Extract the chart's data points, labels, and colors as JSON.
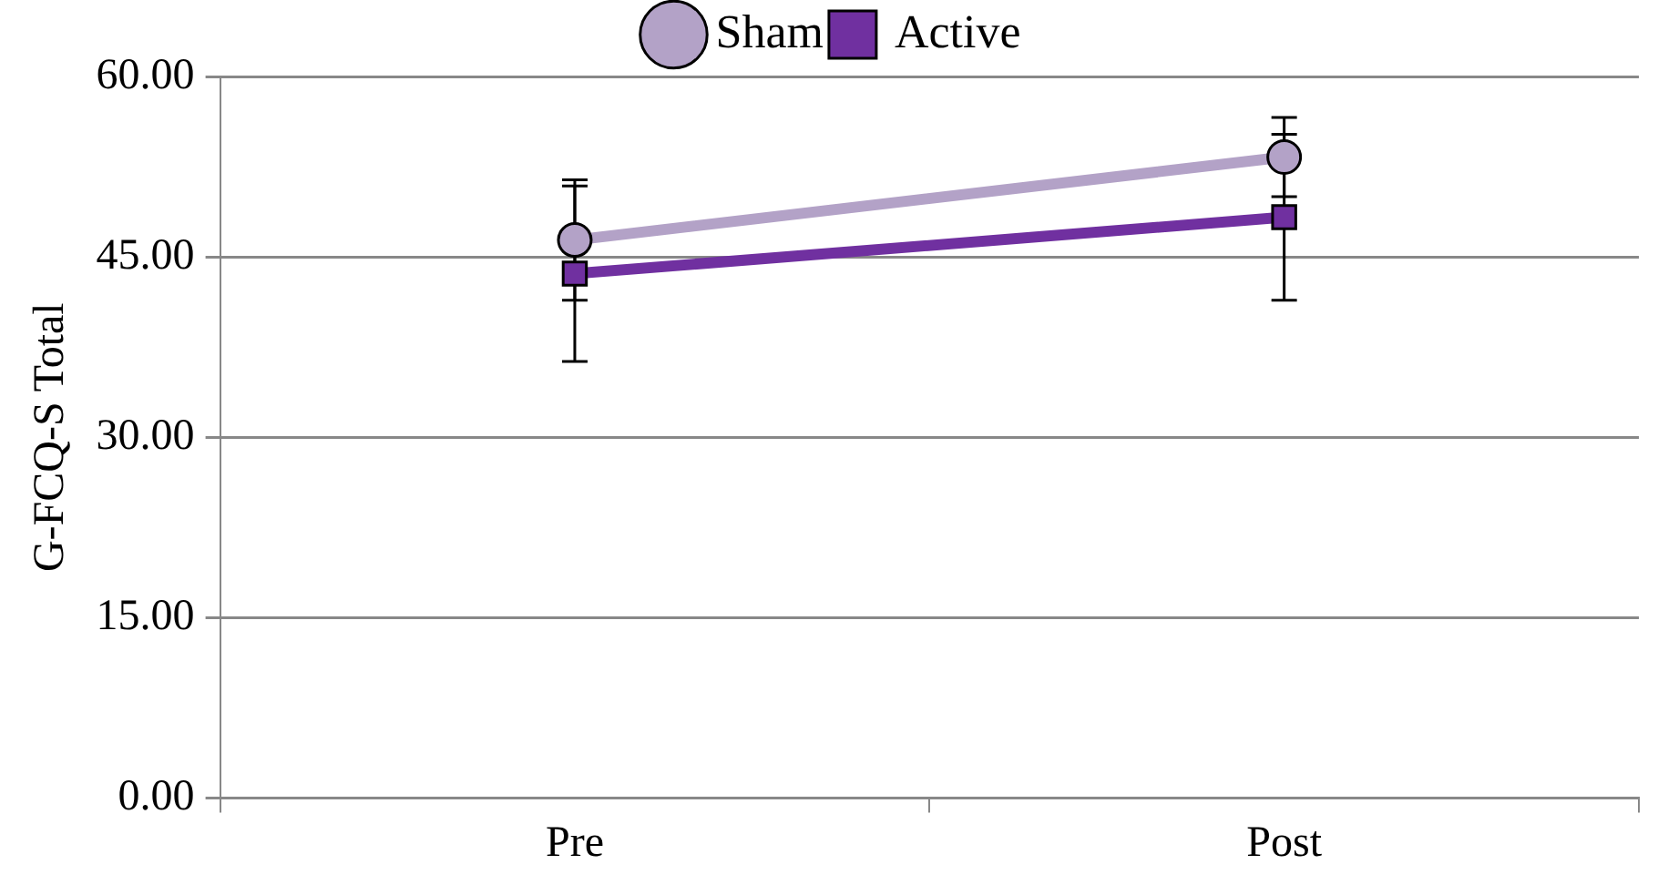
{
  "chart_data": {
    "type": "line",
    "ylabel": "G-FCQ-S Total",
    "categories": [
      "Pre",
      "Post"
    ],
    "series": [
      {
        "name": "Sham",
        "color": "#b3a2c7",
        "marker": "circle",
        "values": [
          46.4,
          53.3
        ],
        "errors": [
          5.0,
          3.3
        ]
      },
      {
        "name": "Active",
        "color": "#7030a0",
        "marker": "square",
        "values": [
          43.6,
          48.3
        ],
        "errors": [
          7.3,
          6.9
        ]
      }
    ],
    "ylim": [
      0,
      60
    ],
    "yticks": [
      {
        "value": 0,
        "label": "0.00"
      },
      {
        "value": 15,
        "label": "15.00"
      },
      {
        "value": 30,
        "label": "30.00"
      },
      {
        "value": 45,
        "label": "45.00"
      },
      {
        "value": 60,
        "label": "60.00"
      }
    ],
    "grid": "y",
    "legend": "top"
  }
}
